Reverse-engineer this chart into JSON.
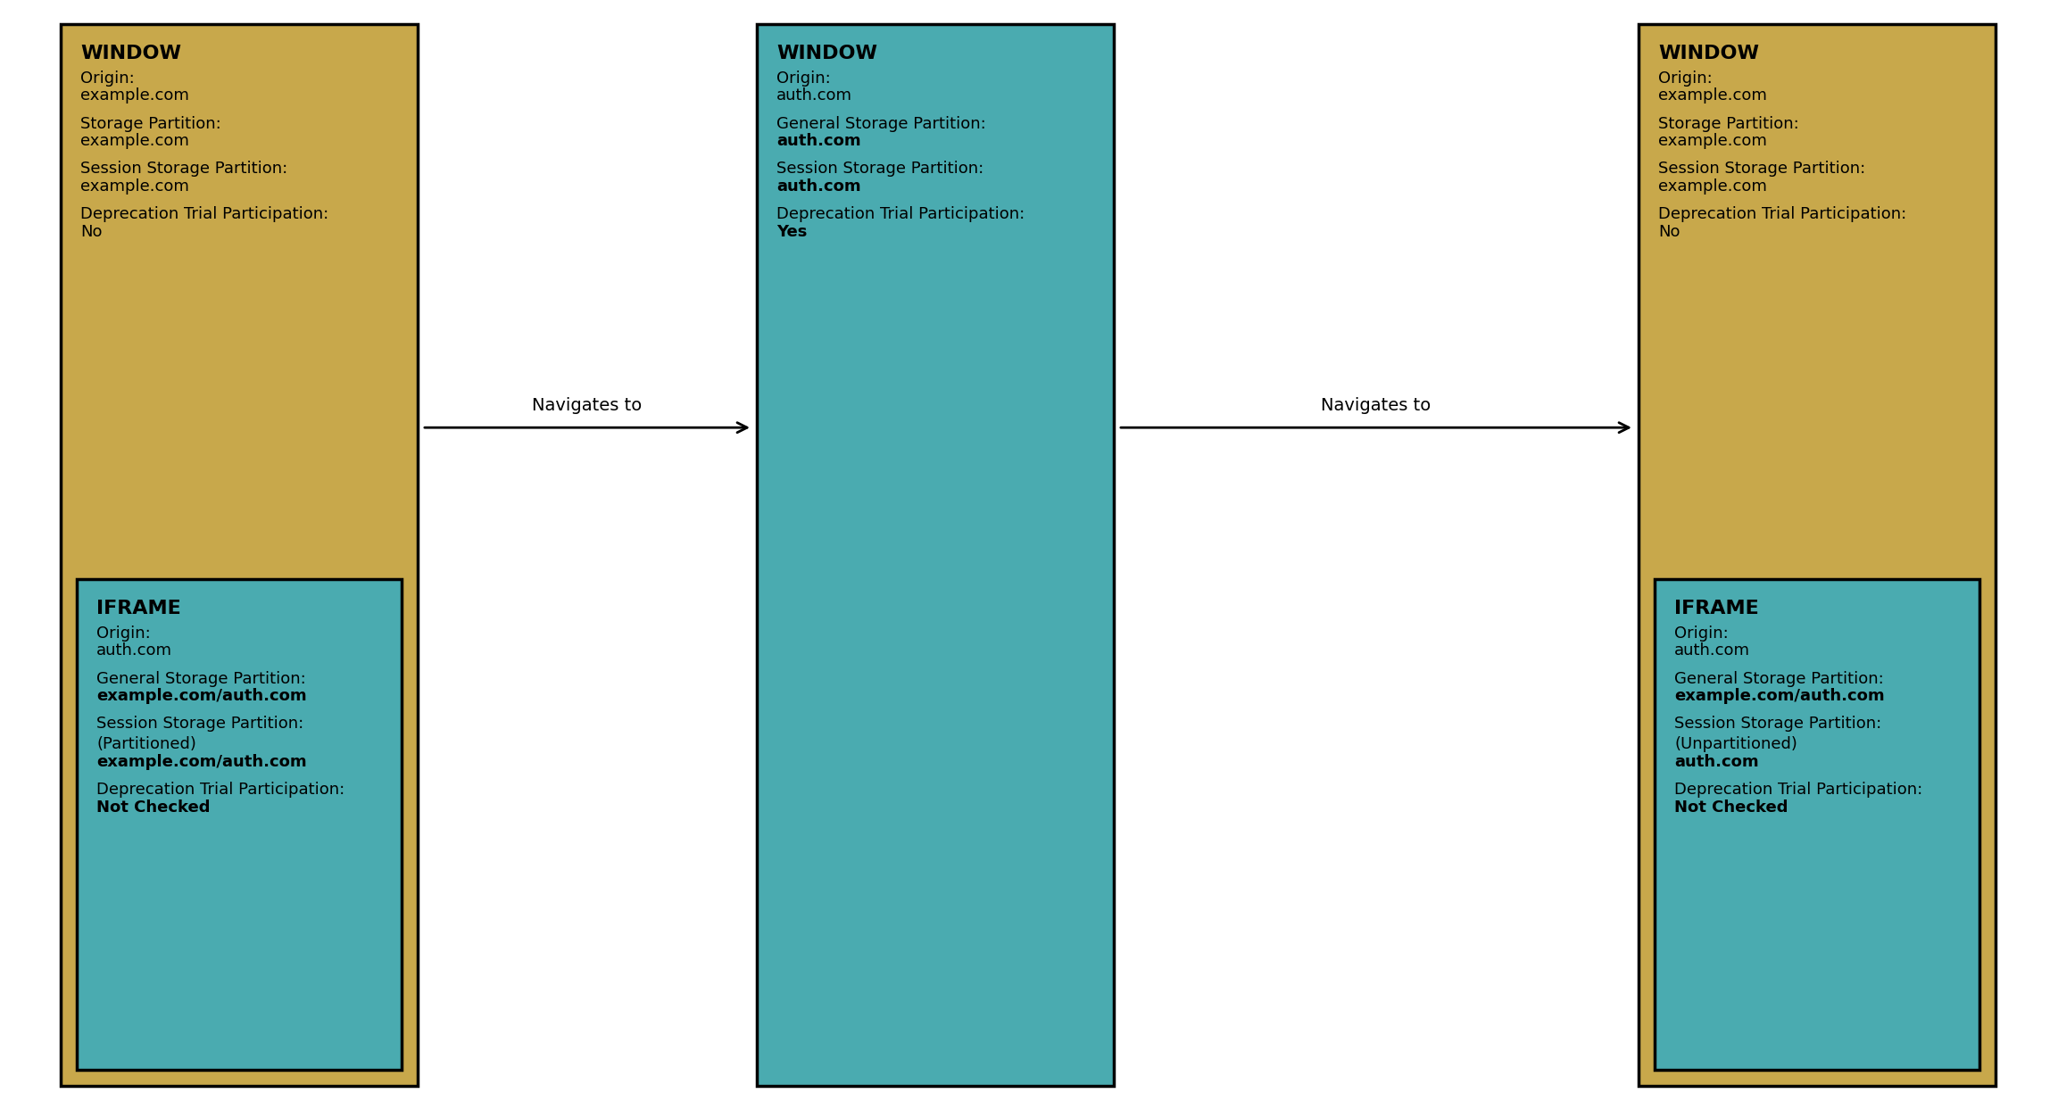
{
  "bg_color": "#ffffff",
  "gold_color": "#C8A84B",
  "teal_color": "#4AABB0",
  "border_color": "#000000",
  "text_color": "#000000",
  "box1": {
    "title": "WINDOW",
    "lines": [
      {
        "label": "Origin:",
        "value": "example.com",
        "bold_value": false
      },
      {
        "label": "Storage Partition:",
        "value": "example.com",
        "bold_value": false
      },
      {
        "label": "Session Storage Partition:",
        "value": "example.com",
        "bold_value": false
      },
      {
        "label": "Deprecation Trial Participation:",
        "value": "No",
        "bold_value": false
      }
    ],
    "color": "#C8A84B",
    "iframe": {
      "title": "IFRAME",
      "lines": [
        {
          "label": "Origin:",
          "value": "auth.com",
          "bold_value": false
        },
        {
          "label": "General Storage Partition:",
          "value": "example.com/auth.com",
          "bold_value": true
        },
        {
          "label": "Session Storage Partition:",
          "value": "",
          "bold_value": false
        },
        {
          "label": "(Partitioned)",
          "value": "example.com/auth.com",
          "bold_value": true
        },
        {
          "label": "Deprecation Trial Participation:",
          "value": "Not Checked",
          "bold_value": true
        }
      ],
      "color": "#4AABB0"
    }
  },
  "box2": {
    "title": "WINDOW",
    "lines": [
      {
        "label": "Origin:",
        "value": "auth.com",
        "bold_value": false
      },
      {
        "label": "General Storage Partition:",
        "value": "auth.com",
        "bold_value": true
      },
      {
        "label": "Session Storage Partition:",
        "value": "auth.com",
        "bold_value": true
      },
      {
        "label": "Deprecation Trial Participation:",
        "value": "Yes",
        "bold_value": true
      }
    ],
    "color": "#4AABB0",
    "iframe": null
  },
  "box3": {
    "title": "WINDOW",
    "lines": [
      {
        "label": "Origin:",
        "value": "example.com",
        "bold_value": false
      },
      {
        "label": "Storage Partition:",
        "value": "example.com",
        "bold_value": false
      },
      {
        "label": "Session Storage Partition:",
        "value": "example.com",
        "bold_value": false
      },
      {
        "label": "Deprecation Trial Participation:",
        "value": "No",
        "bold_value": false
      }
    ],
    "color": "#C8A84B",
    "iframe": {
      "title": "IFRAME",
      "lines": [
        {
          "label": "Origin:",
          "value": "auth.com",
          "bold_value": false
        },
        {
          "label": "General Storage Partition:",
          "value": "example.com/auth.com",
          "bold_value": true
        },
        {
          "label": "Session Storage Partition:",
          "value": "",
          "bold_value": false
        },
        {
          "label": "(Unpartitioned)",
          "value": "auth.com",
          "bold_value": true
        },
        {
          "label": "Deprecation Trial Participation:",
          "value": "Not Checked",
          "bold_value": true
        }
      ],
      "color": "#4AABB0"
    }
  },
  "arrow1_label": "Navigates to",
  "arrow2_label": "Navigates to",
  "font_size_title": 16,
  "font_size_label": 13,
  "font_size_value": 13,
  "font_size_arrow": 14
}
